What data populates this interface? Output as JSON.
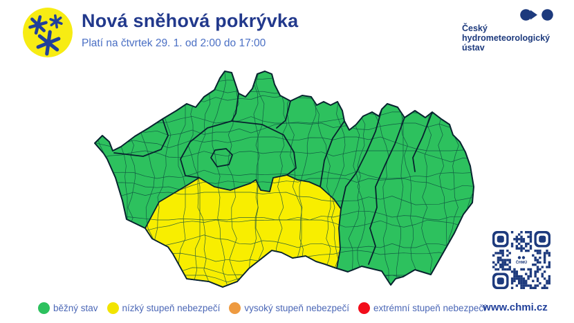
{
  "header": {
    "title": "Nová sněhová pokrývka",
    "subtitle": "Platí na čtvrtek 29. 1. od 2:00 do 17:00",
    "organization": {
      "lines": [
        "Český",
        "hydrometeorologický",
        "ústav"
      ]
    }
  },
  "map": {
    "colors": {
      "normal": "#2dc15e",
      "low": "#f8ee00",
      "high": "#ee9a40",
      "extreme": "#f20d1a",
      "border_thin": "#0d4a3f",
      "border_thick": "#07222e"
    }
  },
  "legend": {
    "items": [
      {
        "label": "běžný stav",
        "color": "#2dc15e"
      },
      {
        "label": "nízký stupeň nebezpečí",
        "color": "#f2e400"
      },
      {
        "label": "vysoký stupeň nebezpečí",
        "color": "#ee9a40"
      },
      {
        "label": "extrémní stupeň nebezpečí",
        "color": "#f20d1a"
      }
    ]
  },
  "footer": {
    "website": "www.chmi.cz",
    "qr_label": "ČHMÚ"
  }
}
